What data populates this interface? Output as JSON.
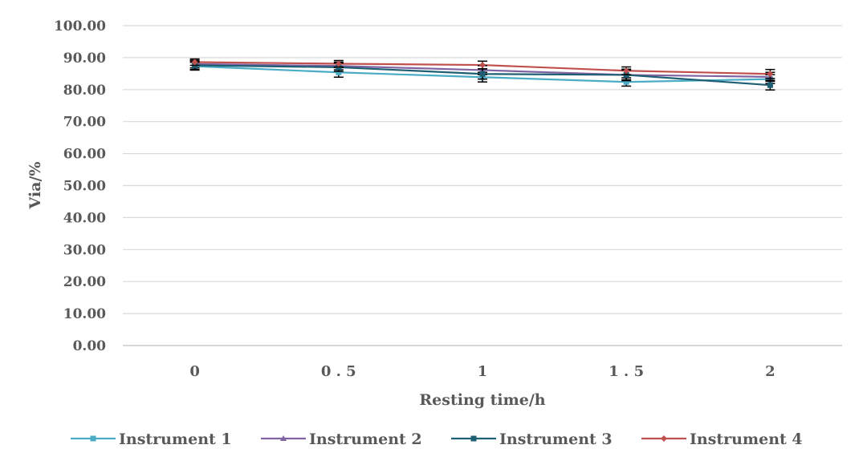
{
  "chart_data": {
    "type": "line",
    "title": "",
    "xlabel": "Resting time/h",
    "ylabel": "Via/%",
    "categories": [
      "0",
      "0.5",
      "1",
      "1.5",
      "2"
    ],
    "category_labels": [
      "0",
      "0 . 5",
      "1",
      "1 . 5",
      "2"
    ],
    "y_ticks": [
      "0.00",
      "10.00",
      "20.00",
      "30.00",
      "40.00",
      "50.00",
      "60.00",
      "70.00",
      "80.00",
      "90.00",
      "100.00"
    ],
    "ylim": [
      0,
      100
    ],
    "grid": true,
    "legend_position": "bottom",
    "series": [
      {
        "name": "Instrument 1",
        "values": [
          87.3,
          85.4,
          83.9,
          82.4,
          83.3
        ],
        "error": [
          1.2,
          1.5,
          1.5,
          1.3,
          1.4
        ],
        "color": "#4BACC6",
        "marker": "square"
      },
      {
        "name": "Instrument 2",
        "values": [
          88.0,
          87.4,
          86.1,
          84.6,
          84.0
        ],
        "error": [
          1.2,
          1.2,
          1.4,
          1.5,
          1.4
        ],
        "color": "#8064A2",
        "marker": "triangle"
      },
      {
        "name": "Instrument 3",
        "values": [
          87.6,
          87.0,
          84.9,
          84.6,
          81.4
        ],
        "error": [
          1.3,
          1.3,
          1.6,
          1.8,
          1.5
        ],
        "color": "#1F5F73",
        "marker": "square"
      },
      {
        "name": "Instrument 4",
        "values": [
          88.6,
          88.1,
          87.7,
          85.9,
          84.9
        ],
        "error": [
          1.0,
          1.0,
          1.2,
          1.2,
          1.4
        ],
        "color": "#C0504D",
        "marker": "diamond"
      }
    ]
  }
}
